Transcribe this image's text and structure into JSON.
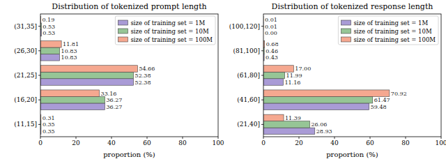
{
  "chart_data": [
    {
      "type": "bar",
      "orientation": "horizontal",
      "title": "Distribution of tokenized prompt length",
      "xlabel": "proportion (%)",
      "categories": [
        "(11,15]",
        "(16,20]",
        "(21,25]",
        "(26,30]",
        "(31,35]"
      ],
      "series": [
        {
          "name": "size of training set = 1M",
          "color": "#a99bd6",
          "values": [
            0.35,
            36.27,
            52.38,
            10.83,
            0.53
          ],
          "value_labels": [
            "0.35",
            "36.27",
            "52.38",
            "10.83",
            "0.53"
          ]
        },
        {
          "name": "size of training set = 10M",
          "color": "#96c596",
          "values": [
            0.35,
            36.27,
            52.38,
            10.83,
            0.53
          ],
          "value_labels": [
            "0.35",
            "36.27",
            "52.38",
            "10.83",
            "0.53"
          ]
        },
        {
          "name": "size of training set = 100M",
          "color": "#f5a890",
          "values": [
            0.31,
            33.16,
            54.66,
            11.81,
            0.19
          ],
          "value_labels": [
            "0.31",
            "33.16",
            "54.66",
            "11.81",
            "0.19"
          ]
        }
      ],
      "xlim": [
        0,
        100
      ],
      "xticks": [
        0,
        20,
        40,
        60,
        80,
        100
      ],
      "legend": "upper right",
      "data_labels": true,
      "grid": false
    },
    {
      "type": "bar",
      "orientation": "horizontal",
      "title": "Distribution of tokenized response length",
      "xlabel": "proportion (%)",
      "categories": [
        "(21,40]",
        "(41,60]",
        "(61,80]",
        "(81,100]",
        "(100,120]"
      ],
      "series": [
        {
          "name": "size of training set = 1M",
          "color": "#a99bd6",
          "values": [
            28.93,
            59.48,
            11.16,
            0.43,
            0.0
          ],
          "value_labels": [
            "28.93",
            "59.48",
            "11.16",
            "0.43",
            "0.00"
          ]
        },
        {
          "name": "size of training set = 10M",
          "color": "#96c596",
          "values": [
            26.06,
            61.47,
            11.99,
            0.46,
            0.01
          ],
          "value_labels": [
            "26.06",
            "61.47",
            "11.99",
            "0.46",
            "0.01"
          ]
        },
        {
          "name": "size of training set = 100M",
          "color": "#f5a890",
          "values": [
            11.39,
            70.92,
            17.0,
            0.68,
            0.01
          ],
          "value_labels": [
            "11.39",
            "70.92",
            "17.00",
            "0.68",
            "0.01"
          ]
        }
      ],
      "xlim": [
        0,
        100
      ],
      "xticks": [
        0,
        20,
        40,
        60,
        80,
        100
      ],
      "legend": "upper right",
      "data_labels": true,
      "grid": false
    }
  ]
}
